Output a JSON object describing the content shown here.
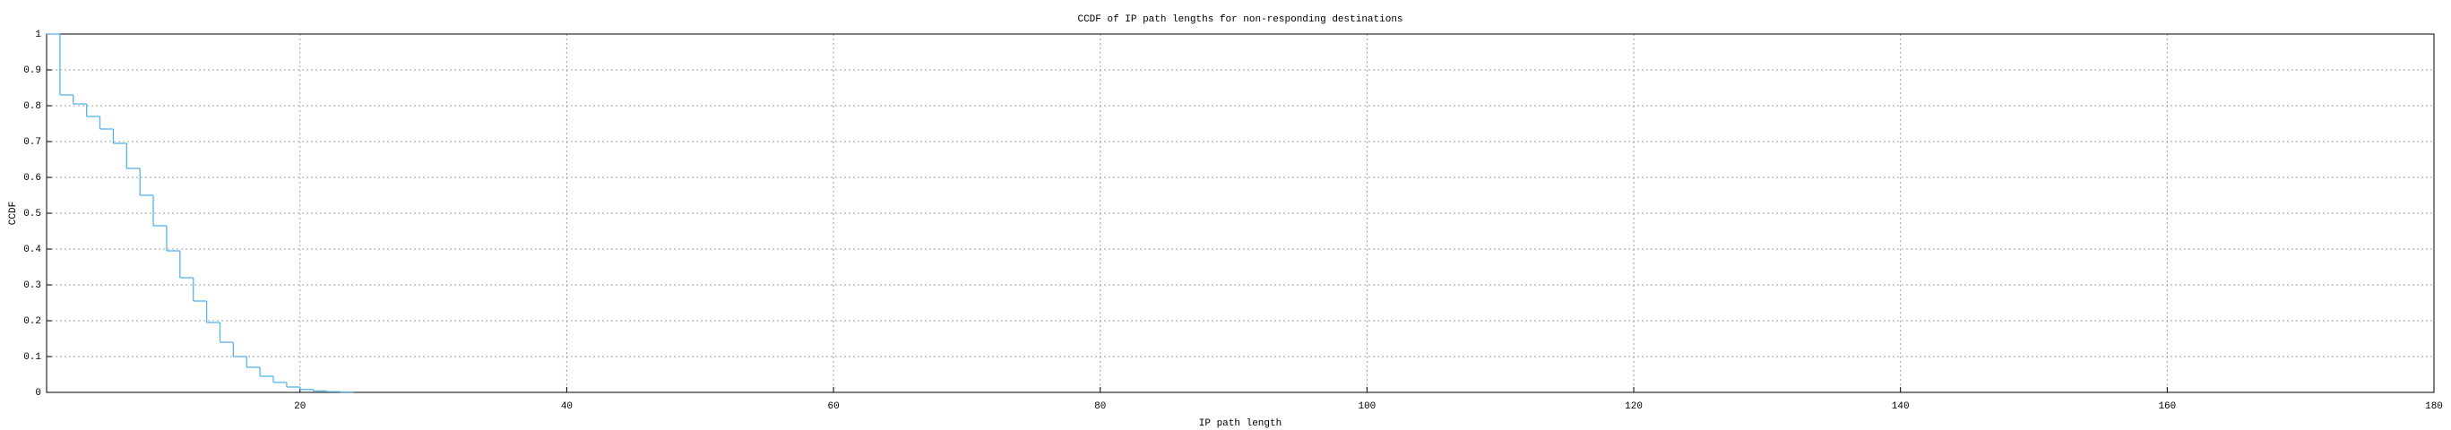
{
  "chart_data": {
    "type": "step",
    "title": "CCDF of IP path lengths for non-responding destinations",
    "x_label": "IP path length",
    "y_label": "CCDF",
    "x": [
      1,
      2,
      3,
      4,
      5,
      6,
      7,
      8,
      9,
      10,
      11,
      12,
      13,
      14,
      15,
      16,
      17,
      18,
      19,
      20,
      21,
      22,
      23,
      24
    ],
    "values": [
      1,
      0.83,
      0.805,
      0.77,
      0.735,
      0.695,
      0.625,
      0.55,
      0.465,
      0.395,
      0.32,
      0.255,
      0.195,
      0.14,
      0.1,
      0.07,
      0.045,
      0.028,
      0.015,
      0.008,
      0.004,
      0.002,
      0.001,
      0
    ],
    "color": "#56b4e9",
    "xlim": [
      1,
      180
    ],
    "xticks": [
      20,
      40,
      60,
      80,
      100,
      120,
      140,
      160,
      180
    ],
    "ylim": [
      0,
      1
    ],
    "yticks": [
      0,
      0.1,
      0.2,
      0.3,
      0.4,
      0.5,
      0.6,
      0.7,
      0.8,
      0.9,
      1
    ],
    "grid": true
  }
}
